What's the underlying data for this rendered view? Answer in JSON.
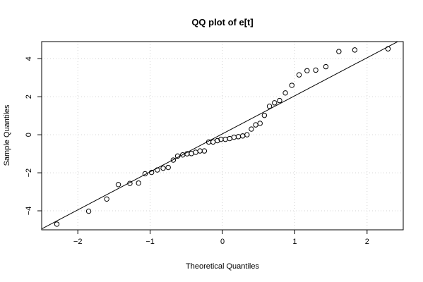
{
  "chart_data": {
    "type": "scatter",
    "title": "QQ plot of e[t]",
    "xlabel": "Theoretical Quantiles",
    "ylabel": "Sample Quantiles",
    "xlim": [
      -2.5,
      2.5
    ],
    "ylim": [
      -5.0,
      4.9
    ],
    "x_ticks": [
      -2,
      -1,
      0,
      1,
      2
    ],
    "x_tick_labels": [
      "−2",
      "−1",
      "0",
      "1",
      "2"
    ],
    "y_ticks": [
      -4,
      -2,
      0,
      2,
      4
    ],
    "y_tick_labels": [
      "−4",
      "−2",
      "0",
      "2",
      "4"
    ],
    "grid": true,
    "marker": "open-circle",
    "reference_line": {
      "x": [
        -2.5,
        2.5
      ],
      "y": [
        -4.95,
        5.05
      ]
    },
    "points": [
      {
        "x": -2.29,
        "y": -4.7
      },
      {
        "x": -1.85,
        "y": -4.02
      },
      {
        "x": -1.6,
        "y": -3.38
      },
      {
        "x": -1.44,
        "y": -2.62
      },
      {
        "x": -1.28,
        "y": -2.56
      },
      {
        "x": -1.16,
        "y": -2.54
      },
      {
        "x": -1.07,
        "y": -2.05
      },
      {
        "x": -0.98,
        "y": -1.98
      },
      {
        "x": -0.9,
        "y": -1.85
      },
      {
        "x": -0.82,
        "y": -1.76
      },
      {
        "x": -0.75,
        "y": -1.72
      },
      {
        "x": -0.68,
        "y": -1.33
      },
      {
        "x": -0.62,
        "y": -1.12
      },
      {
        "x": -0.55,
        "y": -1.06
      },
      {
        "x": -0.49,
        "y": -1.0
      },
      {
        "x": -0.43,
        "y": -0.99
      },
      {
        "x": -0.37,
        "y": -0.92
      },
      {
        "x": -0.31,
        "y": -0.85
      },
      {
        "x": -0.25,
        "y": -0.85
      },
      {
        "x": -0.19,
        "y": -0.38
      },
      {
        "x": -0.13,
        "y": -0.38
      },
      {
        "x": -0.07,
        "y": -0.31
      },
      {
        "x": -0.02,
        "y": -0.24
      },
      {
        "x": 0.04,
        "y": -0.24
      },
      {
        "x": 0.1,
        "y": -0.2
      },
      {
        "x": 0.16,
        "y": -0.13
      },
      {
        "x": 0.22,
        "y": -0.1
      },
      {
        "x": 0.28,
        "y": -0.06
      },
      {
        "x": 0.34,
        "y": 0.0
      },
      {
        "x": 0.4,
        "y": 0.3
      },
      {
        "x": 0.46,
        "y": 0.52
      },
      {
        "x": 0.52,
        "y": 0.6
      },
      {
        "x": 0.58,
        "y": 1.02
      },
      {
        "x": 0.65,
        "y": 1.5
      },
      {
        "x": 0.72,
        "y": 1.68
      },
      {
        "x": 0.79,
        "y": 1.8
      },
      {
        "x": 0.87,
        "y": 2.2
      },
      {
        "x": 0.96,
        "y": 2.6
      },
      {
        "x": 1.06,
        "y": 3.15
      },
      {
        "x": 1.17,
        "y": 3.37
      },
      {
        "x": 1.29,
        "y": 3.4
      },
      {
        "x": 1.43,
        "y": 3.58
      },
      {
        "x": 1.61,
        "y": 4.38
      },
      {
        "x": 1.83,
        "y": 4.46
      },
      {
        "x": 2.29,
        "y": 4.52
      }
    ]
  }
}
